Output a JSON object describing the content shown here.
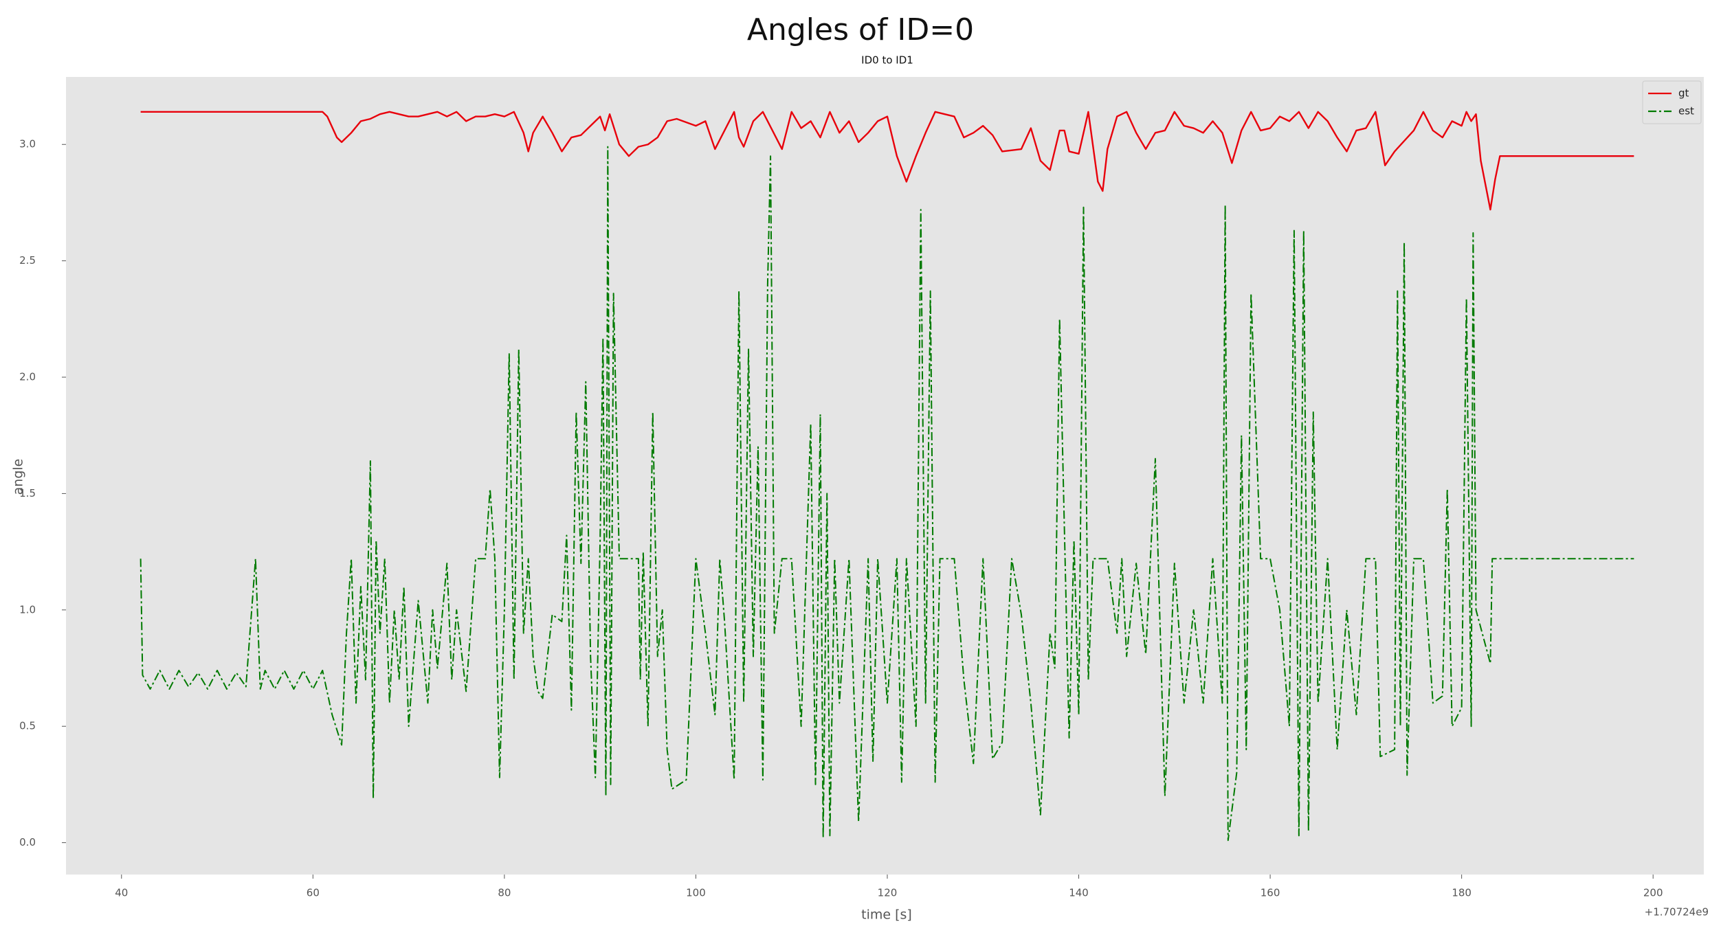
{
  "chart_data": {
    "type": "line",
    "title": "Angles of ID=0",
    "subtitle": "ID0 to ID1",
    "x_label": "time [s]",
    "y_label": "angle",
    "x_offset_label": "+1.70724e9",
    "xlim": [
      34.2,
      205.3
    ],
    "ylim": [
      -0.137,
      3.29
    ],
    "xticks": [
      40,
      60,
      80,
      100,
      120,
      140,
      160,
      180,
      200
    ],
    "yticks": [
      {
        "value": 0,
        "label": "0.0"
      },
      {
        "value": 0.5,
        "label": "0.5"
      },
      {
        "value": 1,
        "label": "1.0"
      },
      {
        "value": 1.5,
        "label": "1.5"
      },
      {
        "value": 2,
        "label": "2.0"
      },
      {
        "value": 2.5,
        "label": "2.5"
      },
      {
        "value": 3,
        "label": "3.0"
      }
    ],
    "grid": false,
    "legend": "upper right",
    "series": [
      {
        "name": "gt",
        "color": "#e8000b",
        "style": "solid",
        "x": [
          42,
          50,
          55,
          61,
          61.5,
          62.5,
          63,
          64,
          65,
          66,
          67,
          68,
          69,
          70,
          71,
          72,
          73,
          74,
          75,
          76,
          77,
          78,
          79,
          80,
          81,
          82,
          82.5,
          83,
          84,
          85,
          86,
          87,
          88,
          89,
          90,
          90.5,
          91,
          92,
          93,
          94,
          95,
          96,
          97,
          98,
          100,
          101,
          102,
          103,
          104,
          104.5,
          105,
          106,
          107,
          108,
          109,
          110,
          111,
          112,
          113,
          114,
          115,
          116,
          117,
          118,
          119,
          120,
          121,
          122,
          123,
          124,
          125,
          126,
          127,
          128,
          129,
          130,
          131,
          132,
          134,
          135,
          136,
          137,
          138,
          138.5,
          139,
          140,
          140.5,
          141,
          142,
          142.5,
          143,
          144,
          145,
          146,
          147,
          148,
          149,
          150,
          151,
          152,
          153,
          154,
          155,
          156,
          157,
          158,
          159,
          160,
          161,
          162,
          163,
          164,
          165,
          166,
          167,
          168,
          169,
          170,
          171,
          172,
          173,
          175,
          176,
          177,
          178,
          179,
          180,
          180.5,
          181,
          181.5,
          182,
          183,
          183.5,
          184,
          190,
          198
        ],
        "values": [
          3.14,
          3.14,
          3.14,
          3.14,
          3.12,
          3.03,
          3.01,
          3.05,
          3.1,
          3.11,
          3.13,
          3.14,
          3.13,
          3.12,
          3.12,
          3.13,
          3.14,
          3.12,
          3.14,
          3.1,
          3.12,
          3.12,
          3.13,
          3.12,
          3.14,
          3.05,
          2.97,
          3.05,
          3.12,
          3.05,
          2.97,
          3.03,
          3.04,
          3.08,
          3.12,
          3.06,
          3.13,
          3.0,
          2.95,
          2.99,
          3.0,
          3.03,
          3.1,
          3.11,
          3.08,
          3.1,
          2.98,
          3.06,
          3.14,
          3.03,
          2.99,
          3.1,
          3.14,
          3.06,
          2.98,
          3.14,
          3.07,
          3.1,
          3.03,
          3.14,
          3.05,
          3.1,
          3.01,
          3.05,
          3.1,
          3.12,
          2.95,
          2.84,
          2.95,
          3.05,
          3.14,
          3.13,
          3.12,
          3.03,
          3.05,
          3.08,
          3.04,
          2.97,
          2.98,
          3.07,
          2.93,
          2.89,
          3.06,
          3.06,
          2.97,
          2.96,
          3.05,
          3.14,
          2.84,
          2.8,
          2.98,
          3.12,
          3.14,
          3.05,
          2.98,
          3.05,
          3.06,
          3.14,
          3.08,
          3.07,
          3.05,
          3.1,
          3.05,
          2.92,
          3.06,
          3.14,
          3.06,
          3.07,
          3.12,
          3.1,
          3.14,
          3.07,
          3.14,
          3.1,
          3.03,
          2.97,
          3.06,
          3.07,
          3.14,
          2.91,
          2.97,
          3.06,
          3.14,
          3.06,
          3.03,
          3.1,
          3.08,
          3.14,
          3.1,
          3.13,
          2.93,
          2.72,
          2.85,
          2.95,
          2.95,
          2.95
        ]
      },
      {
        "name": "est",
        "color": "#007a00",
        "style": "dashdot",
        "x": [
          42,
          42.2,
          43,
          44,
          45,
          46,
          47,
          48,
          49,
          50,
          51,
          52,
          53,
          54,
          54.5,
          55,
          56,
          57,
          58,
          59,
          60,
          61,
          62,
          63,
          63.5,
          64,
          64.5,
          65,
          65.5,
          66,
          66.3,
          66.6,
          67,
          67.5,
          68,
          68.5,
          69,
          69.5,
          70,
          71,
          72,
          72.5,
          73,
          74,
          74.5,
          75,
          76,
          77,
          78,
          78.5,
          79,
          79.5,
          80,
          80.5,
          81,
          81.5,
          82,
          82.5,
          83,
          83.5,
          84,
          85,
          86,
          86.5,
          87,
          87.5,
          88,
          88.5,
          89,
          89.5,
          90,
          90.3,
          90.6,
          90.8,
          91.1,
          91.4,
          92,
          94,
          94.2,
          94.5,
          95,
          95.5,
          96,
          96.5,
          97,
          97.5,
          99,
          100,
          101,
          102,
          102.5,
          103,
          104,
          104.5,
          105,
          105.5,
          106,
          106.5,
          107,
          107.5,
          107.8,
          108.2,
          109,
          110,
          111,
          112,
          112.5,
          113,
          113.3,
          113.7,
          114,
          114.5,
          115,
          116,
          117,
          118,
          118.5,
          119,
          120,
          121,
          121.5,
          122,
          123,
          123.5,
          124,
          124.5,
          125,
          125.5,
          127,
          128,
          129,
          130,
          131,
          132,
          133,
          134,
          135,
          136,
          137,
          137.5,
          138,
          139,
          139.5,
          140,
          140.5,
          141,
          141.5,
          143,
          144,
          144.5,
          145,
          146,
          147,
          148,
          149,
          150,
          151,
          152,
          153,
          154,
          155,
          155.3,
          155.6,
          156.5,
          157,
          157.5,
          158,
          159,
          160,
          161,
          162,
          162.5,
          163,
          163.5,
          164,
          164.5,
          165,
          166,
          167,
          168,
          169,
          170,
          171,
          171.5,
          173,
          173.3,
          173.6,
          174,
          174.3,
          175,
          176,
          177,
          178,
          178.5,
          179,
          180,
          180.5,
          181,
          181.2,
          181.5,
          183,
          183.2,
          198
        ],
        "values": [
          1.22,
          0.72,
          0.66,
          0.74,
          0.66,
          0.74,
          0.67,
          0.73,
          0.66,
          0.74,
          0.66,
          0.73,
          0.67,
          1.22,
          0.66,
          0.74,
          0.66,
          0.74,
          0.66,
          0.74,
          0.66,
          0.74,
          0.55,
          0.42,
          0.9,
          1.22,
          0.6,
          1.1,
          0.7,
          1.64,
          0.19,
          1.3,
          0.9,
          1.22,
          0.6,
          1.0,
          0.7,
          1.1,
          0.5,
          1.04,
          0.6,
          1.0,
          0.75,
          1.2,
          0.7,
          1.0,
          0.65,
          1.22,
          1.22,
          1.52,
          1.22,
          0.28,
          1.0,
          2.1,
          0.7,
          2.12,
          0.9,
          1.22,
          0.8,
          0.65,
          0.62,
          0.98,
          0.95,
          1.32,
          0.57,
          1.85,
          1.2,
          1.98,
          0.8,
          0.28,
          1.3,
          2.17,
          0.2,
          2.99,
          0.25,
          2.36,
          1.22,
          1.22,
          0.7,
          1.25,
          0.5,
          1.85,
          0.8,
          1.0,
          0.4,
          0.23,
          0.27,
          1.22,
          0.9,
          0.55,
          1.22,
          0.95,
          0.27,
          2.37,
          0.6,
          2.12,
          0.8,
          1.7,
          0.27,
          2.4,
          2.95,
          0.9,
          1.22,
          1.22,
          0.5,
          1.8,
          0.25,
          1.84,
          0.02,
          1.5,
          0.03,
          1.22,
          0.6,
          1.22,
          0.09,
          1.22,
          0.35,
          1.22,
          0.6,
          1.22,
          0.26,
          1.22,
          0.5,
          2.72,
          0.6,
          2.37,
          0.26,
          1.22,
          1.22,
          0.7,
          0.34,
          1.22,
          0.36,
          0.43,
          1.22,
          0.98,
          0.6,
          0.12,
          0.9,
          0.75,
          2.25,
          0.45,
          1.3,
          0.55,
          2.73,
          0.7,
          1.22,
          1.22,
          0.9,
          1.22,
          0.8,
          1.2,
          0.81,
          1.65,
          0.2,
          1.2,
          0.6,
          1.0,
          0.6,
          1.22,
          0.6,
          2.74,
          0.01,
          0.3,
          1.75,
          0.4,
          2.36,
          1.22,
          1.22,
          1.0,
          0.5,
          2.63,
          0.03,
          2.63,
          0.05,
          1.85,
          0.6,
          1.22,
          0.4,
          1.0,
          0.55,
          1.22,
          1.22,
          0.37,
          0.4,
          2.37,
          0.5,
          2.58,
          0.29,
          1.22,
          1.22,
          0.6,
          0.63,
          1.52,
          0.5,
          0.58,
          2.34,
          0.5,
          2.62,
          1.0,
          0.77,
          1.22,
          1.22
        ]
      }
    ]
  }
}
